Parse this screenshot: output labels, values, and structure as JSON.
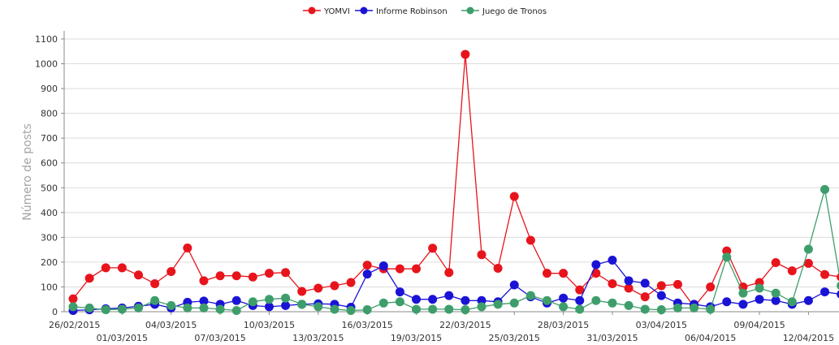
{
  "chart_data": {
    "type": "line",
    "ylabel": "Número de posts",
    "xlabel": "",
    "ylim": [
      0,
      1100
    ],
    "yticks": [
      0,
      100,
      200,
      300,
      400,
      500,
      600,
      700,
      800,
      900,
      1000,
      1100
    ],
    "grid": "horizontal",
    "legend_position": "top-center",
    "x": [
      "26/02/2015",
      "27/02/2015",
      "28/02/2015",
      "01/03/2015",
      "02/03/2015",
      "03/03/2015",
      "04/03/2015",
      "05/03/2015",
      "06/03/2015",
      "07/03/2015",
      "08/03/2015",
      "09/03/2015",
      "10/03/2015",
      "11/03/2015",
      "12/03/2015",
      "13/03/2015",
      "14/03/2015",
      "15/03/2015",
      "16/03/2015",
      "17/03/2015",
      "18/03/2015",
      "19/03/2015",
      "20/03/2015",
      "21/03/2015",
      "22/03/2015",
      "23/03/2015",
      "24/03/2015",
      "25/03/2015",
      "26/03/2015",
      "27/03/2015",
      "28/03/2015",
      "29/03/2015",
      "30/03/2015",
      "31/03/2015",
      "01/04/2015",
      "02/04/2015",
      "03/04/2015",
      "04/04/2015",
      "05/04/2015",
      "06/04/2015",
      "07/04/2015",
      "08/04/2015",
      "09/04/2015",
      "10/04/2015",
      "11/04/2015",
      "12/04/2015",
      "13/04/2015",
      "14/04/2015"
    ],
    "xtick_labels": [
      "26/02/2015",
      "01/03/2015",
      "04/03/2015",
      "07/03/2015",
      "10/03/2015",
      "13/03/2015",
      "16/03/2015",
      "19/03/2015",
      "22/03/2015",
      "25/03/2015",
      "28/03/2015",
      "31/03/2015",
      "03/04/2015",
      "06/04/2015",
      "09/04/2015",
      "12/04/2015"
    ],
    "series": [
      {
        "name": "YOMVI",
        "color": "#e8141c",
        "values": [
          52,
          135,
          177,
          177,
          148,
          113,
          162,
          257,
          125,
          145,
          145,
          140,
          155,
          158,
          82,
          95,
          105,
          118,
          188,
          173,
          173,
          173,
          256,
          158,
          1038,
          230,
          175,
          465,
          288,
          155,
          155,
          88,
          155,
          113,
          95,
          60,
          105,
          110,
          20,
          100,
          245,
          100,
          118,
          198,
          165,
          195,
          150,
          140
        ]
      },
      {
        "name": "Informe Robinson",
        "color": "#1a13d6",
        "values": [
          5,
          8,
          12,
          15,
          22,
          30,
          15,
          38,
          43,
          30,
          45,
          25,
          20,
          25,
          30,
          32,
          30,
          18,
          152,
          185,
          80,
          50,
          50,
          65,
          45,
          45,
          40,
          108,
          60,
          35,
          55,
          45,
          190,
          208,
          125,
          115,
          65,
          35,
          30,
          20,
          40,
          30,
          50,
          45,
          30,
          45,
          80,
          70
        ]
      },
      {
        "name": "Juego de Tronos",
        "color": "#3e9e6b",
        "values": [
          20,
          15,
          8,
          10,
          15,
          45,
          25,
          15,
          15,
          10,
          5,
          40,
          50,
          55,
          30,
          20,
          10,
          5,
          8,
          35,
          40,
          10,
          10,
          10,
          8,
          20,
          30,
          35,
          65,
          45,
          20,
          10,
          45,
          35,
          25,
          10,
          8,
          15,
          15,
          10,
          220,
          75,
          95,
          75,
          40,
          252,
          493,
          105
        ]
      }
    ]
  }
}
